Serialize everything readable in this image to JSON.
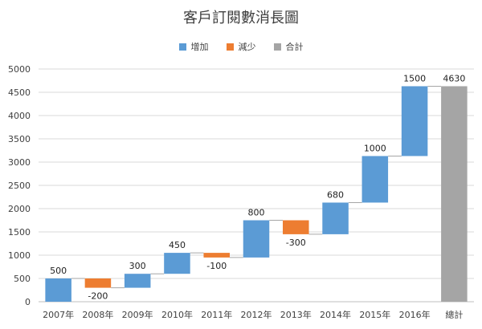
{
  "chart_data": {
    "type": "bar",
    "subtype": "waterfall",
    "title": "客戶訂閱數消長圖",
    "categories": [
      "2007年",
      "2008年",
      "2009年",
      "2010年",
      "2011年",
      "2012年",
      "2013年",
      "2014年",
      "2015年",
      "2016年",
      "總計"
    ],
    "values": [
      500,
      -200,
      300,
      450,
      -100,
      800,
      -300,
      680,
      1000,
      1500,
      4630
    ],
    "kinds": [
      "increase",
      "decrease",
      "increase",
      "increase",
      "decrease",
      "increase",
      "decrease",
      "increase",
      "increase",
      "increase",
      "total"
    ],
    "data_labels": [
      "500",
      "-200",
      "300",
      "450",
      "-100",
      "800",
      "-300",
      "680",
      "1000",
      "1500",
      "4630"
    ],
    "legend": [
      {
        "key": "increase",
        "label": "增加",
        "color": "#5B9BD5"
      },
      {
        "key": "decrease",
        "label": "減少",
        "color": "#ED7D31"
      },
      {
        "key": "total",
        "label": "合計",
        "color": "#A5A5A5"
      }
    ],
    "ylim": [
      0,
      5000
    ],
    "yticks": [
      0,
      500,
      1000,
      1500,
      2000,
      2500,
      3000,
      3500,
      4000,
      4500,
      5000
    ],
    "legend_position": "top",
    "grid": true
  }
}
